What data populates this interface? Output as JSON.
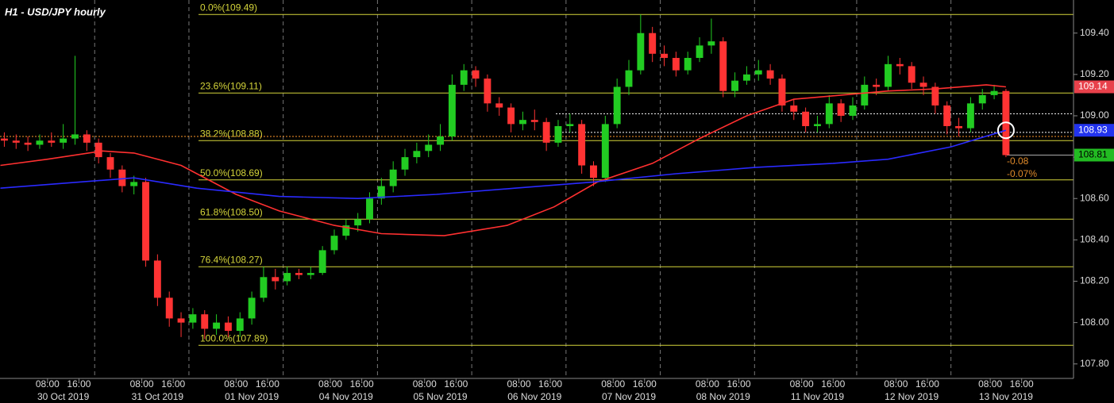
{
  "chart_data": {
    "type": "candlestick",
    "title": "H1 - USD/JPY hourly",
    "up_color": "#22cc22",
    "down_color": "#ff3333",
    "xlim": [
      -4.1,
      269.2
    ],
    "ylim": [
      107.73,
      109.56
    ],
    "x": [
      -3,
      0,
      3,
      6,
      9,
      12,
      15,
      18,
      21,
      24,
      27,
      30,
      33,
      36,
      39,
      42,
      45,
      48,
      51,
      54,
      57,
      60,
      63,
      66,
      69,
      72,
      75,
      78,
      81,
      84,
      87,
      90,
      93,
      96,
      99,
      102,
      105,
      108,
      111,
      114,
      117,
      120,
      123,
      126,
      129,
      132,
      135,
      138,
      141,
      144,
      147,
      150,
      153,
      156,
      159,
      162,
      165,
      168,
      171,
      174,
      177,
      180,
      183,
      186,
      189,
      192,
      195,
      198,
      201,
      204,
      207,
      210,
      213,
      216,
      219,
      222,
      225,
      228,
      231,
      234,
      237,
      240,
      243,
      246,
      249,
      252
    ],
    "open": [
      108.89,
      108.88,
      108.87,
      108.86,
      108.88,
      108.87,
      108.89,
      108.91,
      108.87,
      108.8,
      108.74,
      108.66,
      108.68,
      108.3,
      108.12,
      108.02,
      108.0,
      108.04,
      107.97,
      108.0,
      107.96,
      108.02,
      108.12,
      108.22,
      108.2,
      108.24,
      108.23,
      108.24,
      108.35,
      108.42,
      108.47,
      108.5,
      108.6,
      108.66,
      108.74,
      108.8,
      108.83,
      108.86,
      108.9,
      109.15,
      109.22,
      109.18,
      109.06,
      109.04,
      108.96,
      108.98,
      108.97,
      108.87,
      108.95,
      108.96,
      108.76,
      108.7,
      108.96,
      109.14,
      109.22,
      109.4,
      109.3,
      109.28,
      109.22,
      109.28,
      109.34,
      109.36,
      109.12,
      109.17,
      109.2,
      109.22,
      109.18,
      109.05,
      109.02,
      108.95,
      108.96,
      109.06,
      109.0,
      109.05,
      109.15,
      109.14,
      109.25,
      109.24,
      109.16,
      109.14,
      109.05,
      108.95,
      108.94,
      109.06,
      109.1,
      109.12
    ],
    "high": [
      108.92,
      108.91,
      108.9,
      108.91,
      108.92,
      108.96,
      109.29,
      108.93,
      108.89,
      108.82,
      108.76,
      108.71,
      108.7,
      108.33,
      108.15,
      108.05,
      108.07,
      108.06,
      108.04,
      108.03,
      108.05,
      108.15,
      108.27,
      108.26,
      108.27,
      108.26,
      108.27,
      108.37,
      108.45,
      108.5,
      108.53,
      108.63,
      108.7,
      108.78,
      108.84,
      108.87,
      108.91,
      108.96,
      109.2,
      109.25,
      109.24,
      109.2,
      109.09,
      109.06,
      109.02,
      109.03,
      108.99,
      108.98,
      109.01,
      108.98,
      108.78,
      109.0,
      109.18,
      109.27,
      109.49,
      109.43,
      109.34,
      109.31,
      109.31,
      109.38,
      109.47,
      109.38,
      109.21,
      109.24,
      109.27,
      109.25,
      109.2,
      109.08,
      109.04,
      109.0,
      109.1,
      109.08,
      109.09,
      109.19,
      109.18,
      109.29,
      109.28,
      109.26,
      109.19,
      109.16,
      109.07,
      108.99,
      109.09,
      109.13,
      109.15,
      109.13
    ],
    "low": [
      108.85,
      108.84,
      108.83,
      108.84,
      108.85,
      108.84,
      108.86,
      108.83,
      108.77,
      108.7,
      108.63,
      108.62,
      108.27,
      108.08,
      107.98,
      107.93,
      107.97,
      107.92,
      107.94,
      107.93,
      107.93,
      107.99,
      108.1,
      108.16,
      108.18,
      108.21,
      108.21,
      108.23,
      108.33,
      108.4,
      108.44,
      108.48,
      108.57,
      108.63,
      108.71,
      108.77,
      108.8,
      108.83,
      108.88,
      109.12,
      109.14,
      109.02,
      109.0,
      108.92,
      108.93,
      108.93,
      108.83,
      108.85,
      108.92,
      108.72,
      108.66,
      108.68,
      108.94,
      109.1,
      109.2,
      109.26,
      109.24,
      109.19,
      109.2,
      109.26,
      109.3,
      109.09,
      109.09,
      109.15,
      109.17,
      109.15,
      109.02,
      108.98,
      108.92,
      108.92,
      108.94,
      108.97,
      108.98,
      109.03,
      109.1,
      109.12,
      109.2,
      109.13,
      109.1,
      109.01,
      108.91,
      108.9,
      108.92,
      109.03,
      109.08,
      108.8
    ],
    "close": [
      108.88,
      108.87,
      108.86,
      108.88,
      108.87,
      108.89,
      108.91,
      108.87,
      108.8,
      108.74,
      108.66,
      108.68,
      108.3,
      108.12,
      108.02,
      108.0,
      108.04,
      107.97,
      108.0,
      107.96,
      108.02,
      108.12,
      108.22,
      108.2,
      108.24,
      108.23,
      108.24,
      108.35,
      108.42,
      108.47,
      108.5,
      108.6,
      108.66,
      108.74,
      108.8,
      108.83,
      108.86,
      108.9,
      109.15,
      109.22,
      109.18,
      109.06,
      109.04,
      108.96,
      108.98,
      108.97,
      108.87,
      108.95,
      108.96,
      108.76,
      108.7,
      108.96,
      109.14,
      109.22,
      109.4,
      109.3,
      109.28,
      109.22,
      109.28,
      109.34,
      109.36,
      109.12,
      109.17,
      109.2,
      109.22,
      109.18,
      109.05,
      109.02,
      108.95,
      108.96,
      109.06,
      109.0,
      109.05,
      109.15,
      109.14,
      109.25,
      109.24,
      109.16,
      109.14,
      109.05,
      108.95,
      108.94,
      109.06,
      109.1,
      109.12,
      108.81
    ],
    "lines": [
      {
        "color": "#ff3030",
        "x": [
          -4,
          8,
          22,
          30,
          42,
          56,
          67,
          81,
          93,
          109,
          125,
          137,
          148,
          162,
          174,
          186,
          198,
          210,
          222,
          234,
          247,
          252
        ],
        "values": [
          108.76,
          108.79,
          108.83,
          108.82,
          108.76,
          108.62,
          108.54,
          108.47,
          108.43,
          108.42,
          108.47,
          108.56,
          108.68,
          108.77,
          108.89,
          109.0,
          109.08,
          109.1,
          109.12,
          109.13,
          109.15,
          109.14
        ]
      },
      {
        "color": "#2a2aff",
        "x": [
          -4,
          30,
          46,
          67,
          87,
          107,
          127,
          147,
          168,
          188,
          208,
          222,
          238,
          252
        ],
        "values": [
          108.65,
          108.7,
          108.65,
          108.61,
          108.6,
          108.62,
          108.65,
          108.68,
          108.72,
          108.75,
          108.77,
          108.79,
          108.85,
          108.93
        ]
      }
    ],
    "fib_levels": [
      {
        "value": 109.49,
        "label": "0.0%(109.49)"
      },
      {
        "value": 109.11,
        "label": "23.6%(109.11)"
      },
      {
        "value": 108.88,
        "label": "38.2%(108.88)"
      },
      {
        "value": 108.69,
        "label": "50.0%(108.69)"
      },
      {
        "value": 108.5,
        "label": "61.8%(108.50)"
      },
      {
        "value": 108.27,
        "label": "76.4%(108.27)"
      },
      {
        "value": 107.89,
        "label": "100.0%(107.89)"
      }
    ],
    "fib_color": "#d4d43a",
    "dotted_lines": [
      {
        "value": 108.9,
        "color": "#ff9a2a"
      },
      {
        "value": 109.01,
        "color": "#ffffff"
      },
      {
        "value": 108.92,
        "color": "#ffffff"
      }
    ],
    "price_line": 108.81,
    "price_labels": [
      {
        "value": 109.14,
        "color": "#e8414b",
        "text_color": "#ffffff"
      },
      {
        "value": 108.93,
        "color": "#2233ee",
        "text_color": "#ffffff"
      },
      {
        "value": 108.81,
        "color": "#22bb22",
        "text_color": "#000000"
      }
    ],
    "annotations": [
      "-0.08",
      "-0.07%"
    ],
    "annotation_color": "#e08a2a",
    "marker": {
      "x": 252,
      "y": 108.93
    },
    "separators": [
      20,
      44,
      68,
      92,
      116,
      140,
      164,
      188,
      214,
      238
    ],
    "yticks": [
      {
        "value": 107.8,
        "label": "107.80"
      },
      {
        "value": 108.0,
        "label": "108.00"
      },
      {
        "value": 108.2,
        "label": "108.20"
      },
      {
        "value": 108.4,
        "label": "108.40"
      },
      {
        "value": 108.6,
        "label": "108.60"
      },
      {
        "value": 108.8,
        "label": "108.80"
      },
      {
        "value": 109.0,
        "label": "109.00"
      },
      {
        "value": 109.2,
        "label": "109.20"
      },
      {
        "value": 109.4,
        "label": "109.40"
      }
    ],
    "xticks": [
      {
        "value": 8,
        "label": "08:00"
      },
      {
        "value": 16,
        "label": "16:00"
      },
      {
        "value": 32,
        "label": "08:00"
      },
      {
        "value": 40,
        "label": "16:00"
      },
      {
        "value": 56,
        "label": "08:00"
      },
      {
        "value": 64,
        "label": "16:00"
      },
      {
        "value": 80,
        "label": "08:00"
      },
      {
        "value": 88,
        "label": "16:00"
      },
      {
        "value": 104,
        "label": "08:00"
      },
      {
        "value": 112,
        "label": "16:00"
      },
      {
        "value": 128,
        "label": "08:00"
      },
      {
        "value": 136,
        "label": "16:00"
      },
      {
        "value": 152,
        "label": "08:00"
      },
      {
        "value": 160,
        "label": "16:00"
      },
      {
        "value": 176,
        "label": "08:00"
      },
      {
        "value": 184,
        "label": "16:00"
      },
      {
        "value": 200,
        "label": "08:00"
      },
      {
        "value": 208,
        "label": "16:00"
      },
      {
        "value": 224,
        "label": "08:00"
      },
      {
        "value": 232,
        "label": "16:00"
      },
      {
        "value": 248,
        "label": "08:00"
      },
      {
        "value": 256,
        "label": "16:00"
      }
    ],
    "date_ticks": [
      {
        "value": 12,
        "label": "30 Oct 2019"
      },
      {
        "value": 36,
        "label": "31 Oct 2019"
      },
      {
        "value": 60,
        "label": "01 Nov 2019"
      },
      {
        "value": 84,
        "label": "04 Nov 2019"
      },
      {
        "value": 108,
        "label": "05 Nov 2019"
      },
      {
        "value": 132,
        "label": "06 Nov 2019"
      },
      {
        "value": 156,
        "label": "07 Nov 2019"
      },
      {
        "value": 180,
        "label": "08 Nov 2019"
      },
      {
        "value": 204,
        "label": "11 Nov 2019"
      },
      {
        "value": 228,
        "label": "12 Nov 2019"
      },
      {
        "value": 252,
        "label": "13 Nov 2019"
      }
    ]
  }
}
